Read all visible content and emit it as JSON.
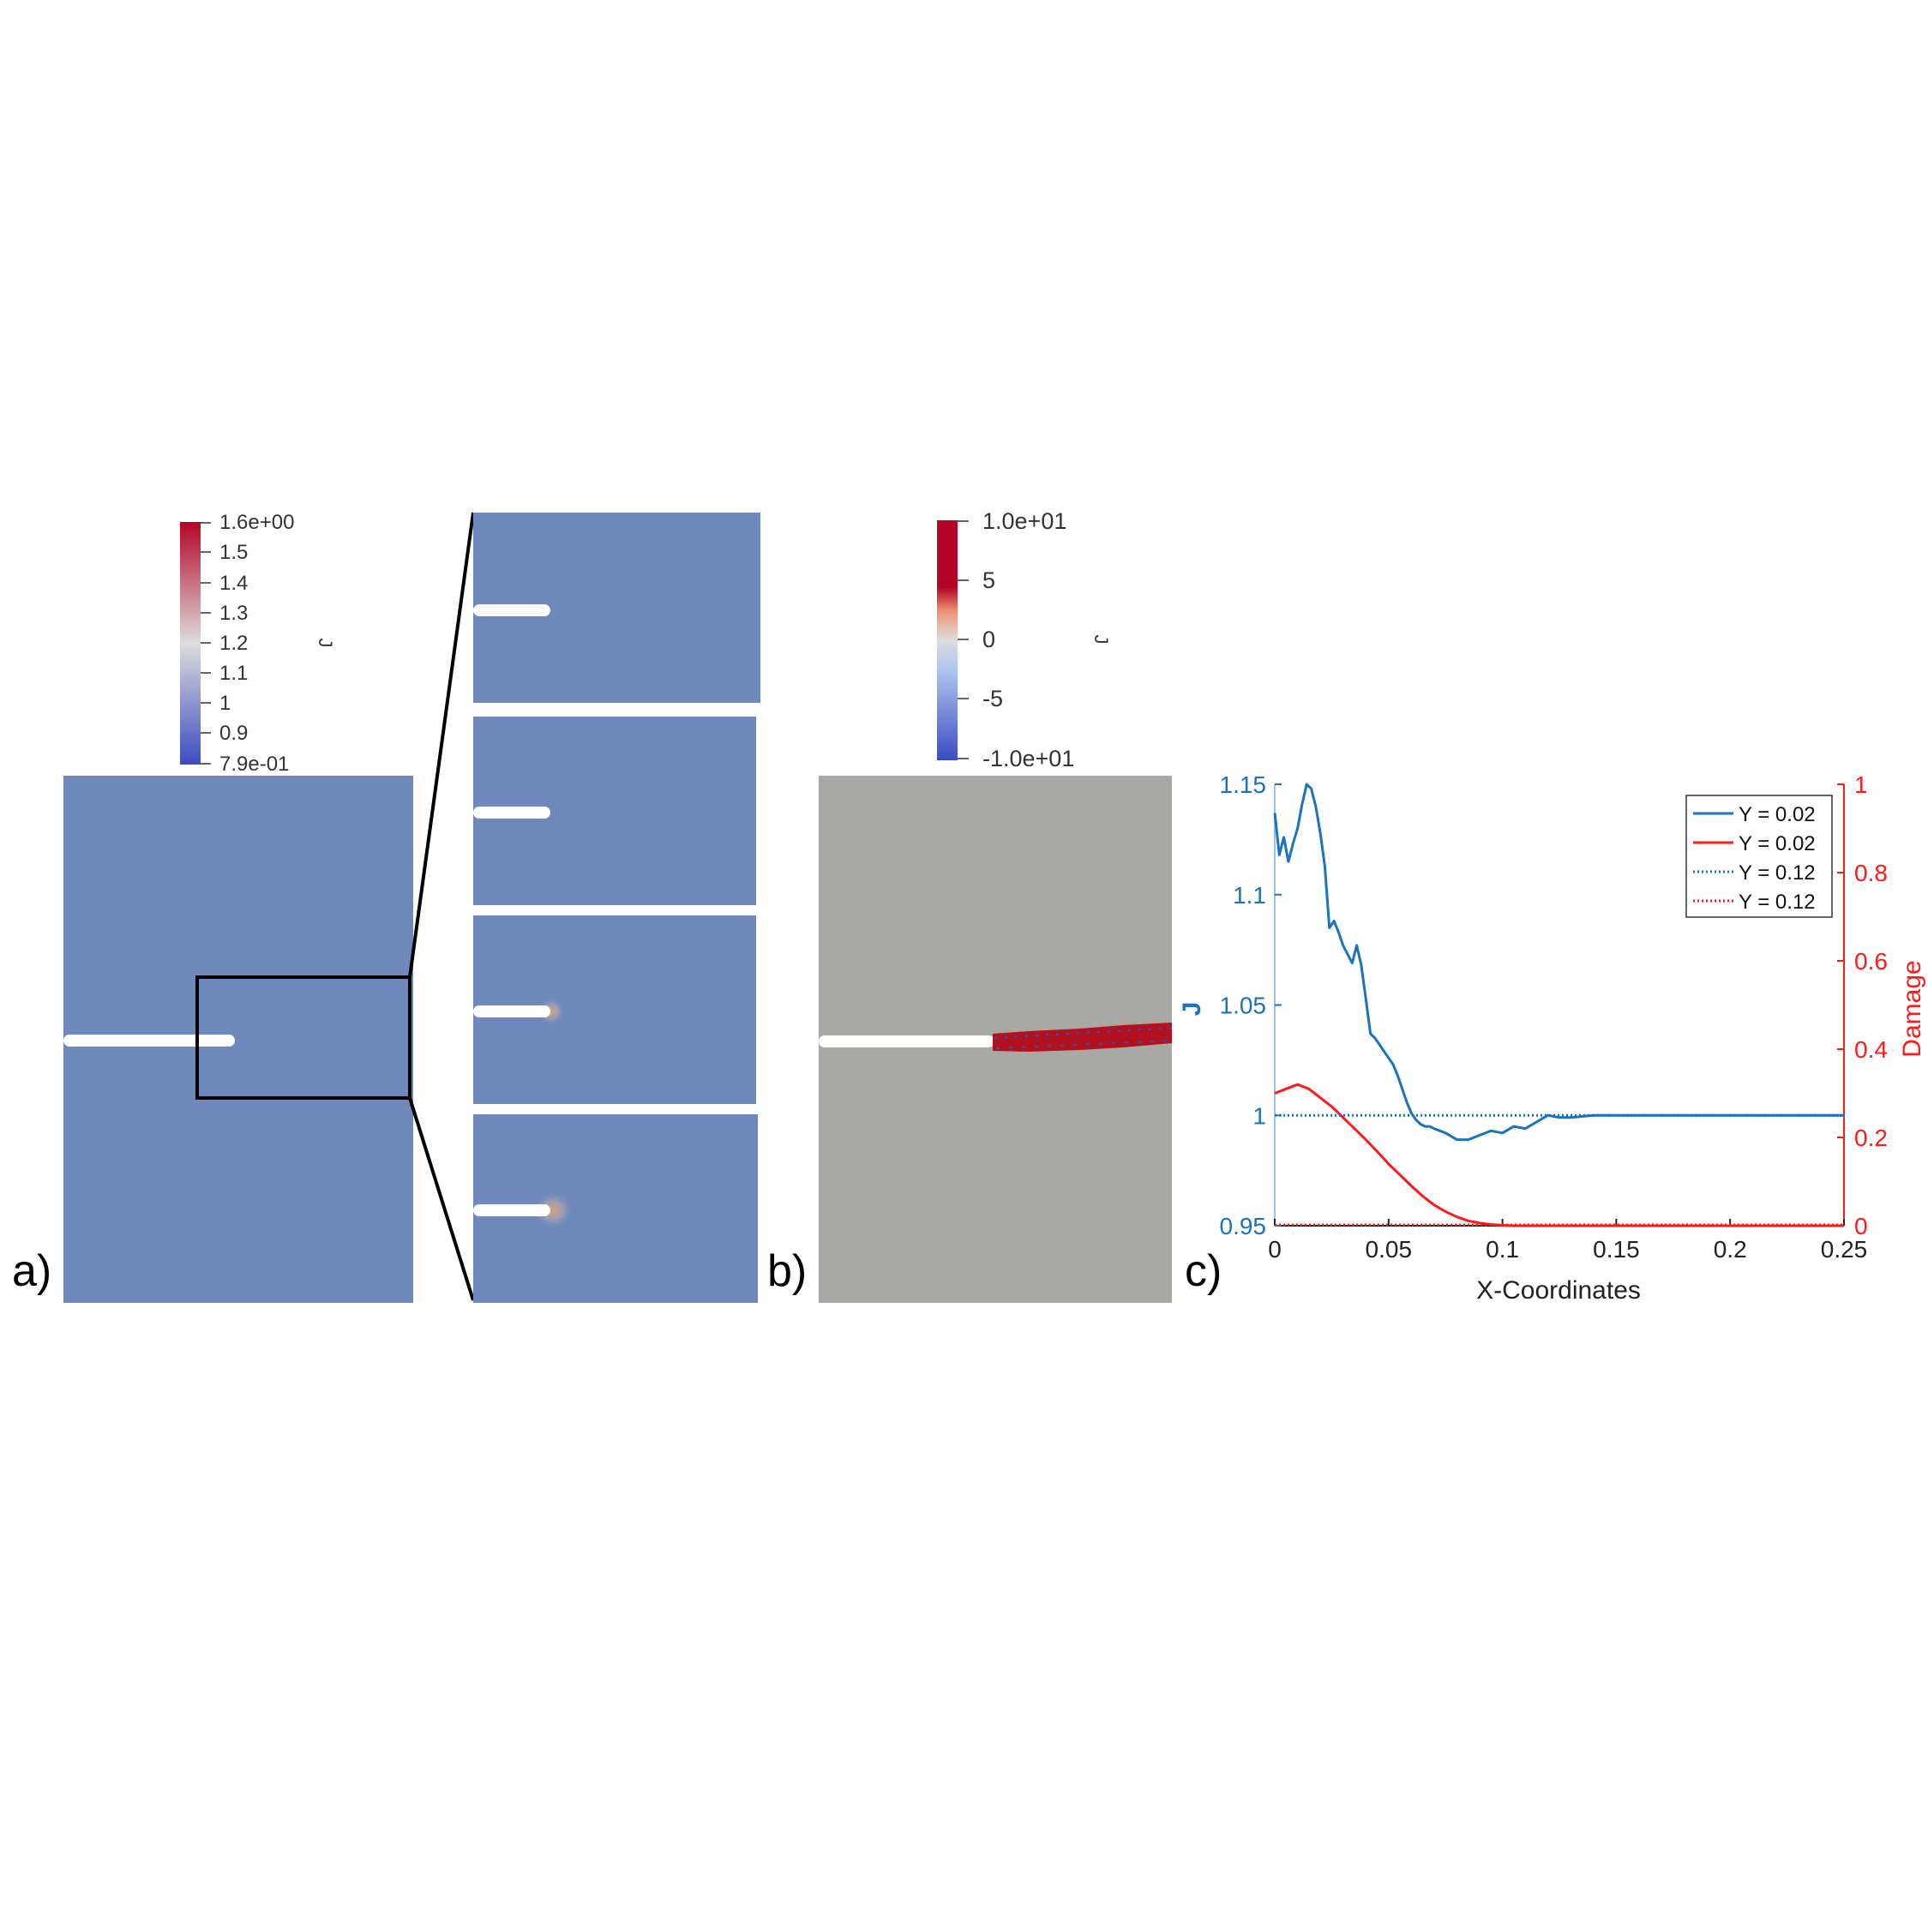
{
  "panel_labels": {
    "a": "a)",
    "b": "b)",
    "c": "c)"
  },
  "colorbar_a": {
    "title": "J",
    "labels": [
      "1.6e+00",
      "1.5",
      "1.4",
      "1.3",
      "1.2",
      "1.1",
      "1",
      "0.9",
      "7.9e-01"
    ]
  },
  "colorbar_b": {
    "title": "J",
    "labels": [
      "1.0e+01",
      "5",
      "0",
      "-5",
      "-1.0e+01"
    ]
  },
  "colors": {
    "field_blue": "#6F89BC",
    "field_gray": "#A8A8A4",
    "series_blue": "#1B72BD",
    "series_red": "#FF1A1A",
    "damage_band": "#B0121F"
  },
  "chart_data": {
    "type": "line",
    "xlabel": "X-Coordinates",
    "ylabel": "J",
    "y2label": "Damage",
    "xlim": [
      0,
      0.25
    ],
    "ylim": [
      0.95,
      1.15
    ],
    "y2lim": [
      0,
      1
    ],
    "xticks": [
      0,
      0.05,
      0.1,
      0.15,
      0.2,
      0.25
    ],
    "xtick_labels": [
      "0",
      "0.05",
      "0.1",
      "0.15",
      "0.2",
      "0.25"
    ],
    "yticks": [
      0.95,
      1,
      1.05,
      1.1,
      1.15
    ],
    "ytick_labels": [
      "0.95",
      "1",
      "1.05",
      "1.1",
      "1.15"
    ],
    "y2ticks": [
      0,
      0.2,
      0.4,
      0.6,
      0.8,
      1
    ],
    "y2tick_labels": [
      "0",
      "0.2",
      "0.4",
      "0.6",
      "0.8",
      "1"
    ],
    "series": [
      {
        "name": "Y = 0.02",
        "axis": "left",
        "style": "solid",
        "color": "#1B72BD",
        "x": [
          0,
          0.002,
          0.004,
          0.006,
          0.008,
          0.01,
          0.012,
          0.014,
          0.016,
          0.018,
          0.02,
          0.022,
          0.024,
          0.026,
          0.028,
          0.03,
          0.032,
          0.034,
          0.036,
          0.038,
          0.04,
          0.042,
          0.044,
          0.046,
          0.048,
          0.05,
          0.052,
          0.054,
          0.056,
          0.058,
          0.06,
          0.062,
          0.064,
          0.066,
          0.068,
          0.07,
          0.075,
          0.08,
          0.085,
          0.09,
          0.095,
          0.1,
          0.105,
          0.11,
          0.115,
          0.12,
          0.125,
          0.13,
          0.14,
          0.15,
          0.16,
          0.17,
          0.18,
          0.19,
          0.2,
          0.21,
          0.22,
          0.23,
          0.24,
          0.25
        ],
        "y": [
          1.137,
          1.118,
          1.126,
          1.115,
          1.123,
          1.13,
          1.141,
          1.15,
          1.148,
          1.14,
          1.128,
          1.113,
          1.085,
          1.088,
          1.083,
          1.077,
          1.073,
          1.069,
          1.077,
          1.068,
          1.053,
          1.037,
          1.035,
          1.032,
          1.029,
          1.026,
          1.023,
          1.018,
          1.012,
          1.006,
          1.001,
          0.998,
          0.996,
          0.995,
          0.995,
          0.994,
          0.992,
          0.989,
          0.989,
          0.991,
          0.993,
          0.992,
          0.995,
          0.994,
          0.997,
          1.0,
          0.999,
          0.999,
          1.0,
          1.0,
          1.0,
          1.0,
          1.0,
          1.0,
          1.0,
          1.0,
          1.0,
          1.0,
          1.0,
          1.0
        ]
      },
      {
        "name": "Y = 0.02",
        "axis": "right",
        "style": "solid",
        "color": "#FF1A1A",
        "x": [
          0,
          0.005,
          0.01,
          0.015,
          0.02,
          0.025,
          0.03,
          0.035,
          0.04,
          0.045,
          0.05,
          0.055,
          0.06,
          0.065,
          0.07,
          0.075,
          0.08,
          0.085,
          0.09,
          0.095,
          0.1,
          0.105,
          0.11,
          0.12,
          0.13,
          0.15,
          0.2,
          0.25
        ],
        "y": [
          0.3,
          0.31,
          0.32,
          0.31,
          0.29,
          0.27,
          0.245,
          0.22,
          0.195,
          0.168,
          0.14,
          0.115,
          0.09,
          0.067,
          0.047,
          0.032,
          0.02,
          0.011,
          0.006,
          0.003,
          0.001,
          0.0,
          0.0,
          0.0,
          0.0,
          0.0,
          0.0,
          0.0
        ]
      },
      {
        "name": "Y = 0.12",
        "axis": "left",
        "style": "dotted",
        "color": "#1B72BD",
        "x": [
          0,
          0.25
        ],
        "y": [
          1.0,
          1.0
        ]
      },
      {
        "name": "Y = 0.12",
        "axis": "right",
        "style": "dotted",
        "color": "#FF1A1A",
        "x": [
          0,
          0.25
        ],
        "y": [
          0.002,
          0.002
        ]
      }
    ]
  }
}
